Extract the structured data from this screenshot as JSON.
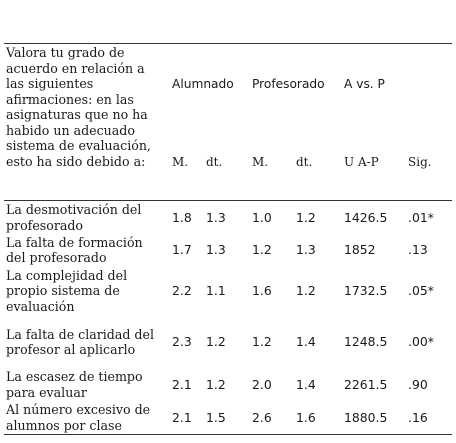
{
  "table": {
    "question": "Valora tu grado de acuerdo en relación a las siguientes afirmaciones: en las asignaturas que no ha habido un adecuado sistema de evaluación, esto ha sido debido a:",
    "groups": [
      "Alumnado",
      "Profesorado",
      "A vs. P"
    ],
    "subheaders": [
      "M.",
      "dt.",
      "M.",
      "dt.",
      "U A-P",
      "Sig."
    ],
    "rows": [
      {
        "item": "La desmotivación del profesorado",
        "values": [
          "1.8",
          "1.3",
          "1.0",
          "1.2",
          "1426.5",
          ".01*"
        ]
      },
      {
        "item": "La falta de formación del profesorado",
        "values": [
          "1.7",
          "1.3",
          "1.2",
          "1.3",
          "1852",
          ".13"
        ]
      },
      {
        "item": "La complejidad del propio sistema de evaluación",
        "values": [
          "2.2",
          "1.1",
          "1.6",
          "1.2",
          "1732.5",
          ".05*"
        ]
      },
      {
        "item": "La falta de claridad del profesor al aplicarlo",
        "values": [
          "2.3",
          "1.2",
          "1.2",
          "1.4",
          "1248.5",
          ".00*"
        ]
      },
      {
        "item": "La escasez de tiempo para evaluar",
        "values": [
          "2.1",
          "1.2",
          "2.0",
          "1.4",
          "2261.5",
          ".90"
        ]
      },
      {
        "item": "Al número excesivo de alumnos por clase",
        "values": [
          "2.1",
          "1.5",
          "2.6",
          "1.6",
          "1880.5",
          ".16"
        ]
      }
    ]
  }
}
